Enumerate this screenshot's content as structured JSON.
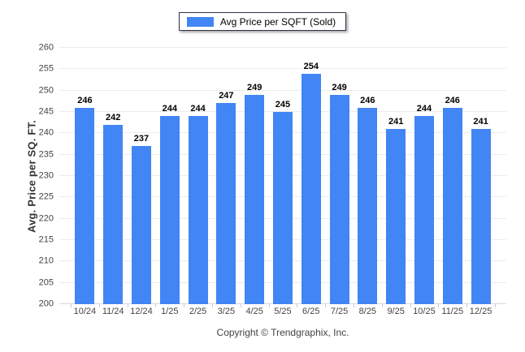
{
  "legend": {
    "label": "Avg Price per SQFT (Sold)"
  },
  "footer": {
    "copyright": "Copyright © Trendgraphix, Inc."
  },
  "colors": {
    "bar": "#4285f4",
    "grid": "#ececec",
    "baseline": "#d8d8d8",
    "axis_tick": "#cccccc",
    "axis_text": "#444444",
    "value_text": "#000000",
    "legend_border": "#333344",
    "background": "#ffffff"
  },
  "chart_data": {
    "type": "bar",
    "title": "",
    "xlabel": "",
    "ylabel": "Avg. Price per SQ. FT.",
    "series_name": "Avg Price per SQFT (Sold)",
    "categories": [
      "10/24",
      "11/24",
      "12/24",
      "1/25",
      "2/25",
      "3/25",
      "4/25",
      "5/25",
      "6/25",
      "7/25",
      "8/25",
      "9/25",
      "10/25",
      "11/25",
      "12/25"
    ],
    "values": [
      246,
      242,
      237,
      244,
      244,
      247,
      249,
      245,
      254,
      249,
      246,
      241,
      244,
      246,
      241
    ],
    "ylim": [
      200,
      260
    ],
    "ytick_step": 5,
    "yticks": [
      200,
      205,
      210,
      215,
      220,
      225,
      230,
      235,
      240,
      245,
      250,
      255,
      260
    ],
    "grid": "horizontal",
    "legend_position": "top-center",
    "value_labels": true
  }
}
